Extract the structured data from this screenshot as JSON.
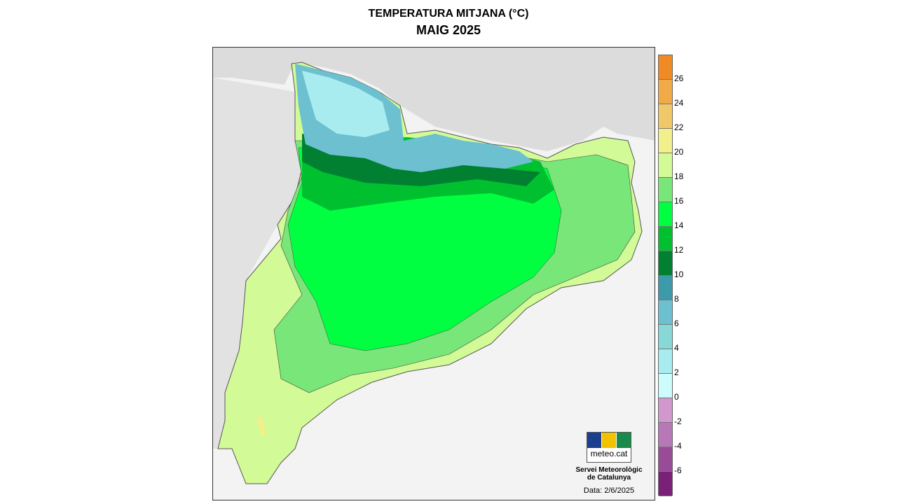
{
  "title": "TEMPERATURA MITJANA (°C)",
  "subtitle": "MAIG 2025",
  "legend": {
    "labels": [
      "26",
      "24",
      "22",
      "20",
      "18",
      "16",
      "14",
      "12",
      "10",
      "8",
      "6",
      "4",
      "2",
      "0",
      "-2",
      "-4",
      "-6"
    ],
    "colors": [
      "#f08a24",
      "#f0aa48",
      "#f0c868",
      "#f2f08a",
      "#d2fa96",
      "#78e678",
      "#00ff40",
      "#00c030",
      "#008030",
      "#3c9aaa",
      "#6cc0d0",
      "#88d8d8",
      "#a8ecf0",
      "#ccfcfc",
      "#d098cc",
      "#b878b8",
      "#984c98",
      "#7a2078"
    ]
  },
  "logo": {
    "text": "meteo.cat",
    "colors": [
      "#1a3f8f",
      "#f2c200",
      "#1a8a4a"
    ]
  },
  "organization": {
    "line1": "Servei Meteorològic",
    "line2": "de Catalunya"
  },
  "date": "Data: 2/6/2025"
}
